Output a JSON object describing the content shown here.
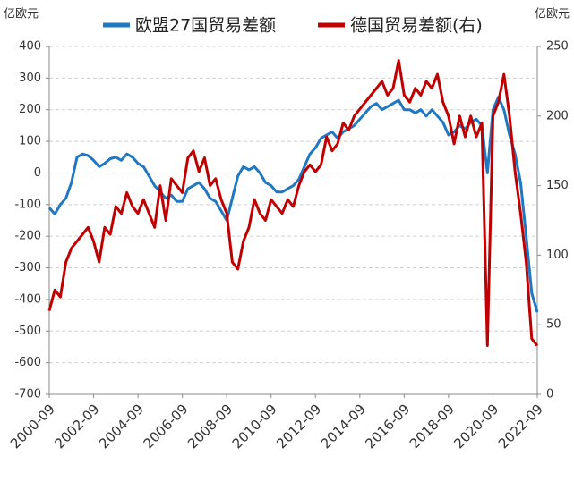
{
  "chart_data": {
    "type": "line",
    "y_unit": "亿欧元",
    "y2_unit": "亿欧元",
    "x": [
      "2000-09",
      "2000-12",
      "2001-03",
      "2001-06",
      "2001-09",
      "2001-12",
      "2002-03",
      "2002-06",
      "2002-09",
      "2002-12",
      "2003-03",
      "2003-06",
      "2003-09",
      "2003-12",
      "2004-03",
      "2004-06",
      "2004-09",
      "2004-12",
      "2005-03",
      "2005-06",
      "2005-09",
      "2005-12",
      "2006-03",
      "2006-06",
      "2006-09",
      "2006-12",
      "2007-03",
      "2007-06",
      "2007-09",
      "2007-12",
      "2008-03",
      "2008-06",
      "2008-09",
      "2008-12",
      "2009-03",
      "2009-06",
      "2009-09",
      "2009-12",
      "2010-03",
      "2010-06",
      "2010-09",
      "2010-12",
      "2011-03",
      "2011-06",
      "2011-09",
      "2011-12",
      "2012-03",
      "2012-06",
      "2012-09",
      "2012-12",
      "2013-03",
      "2013-06",
      "2013-09",
      "2013-12",
      "2014-03",
      "2014-06",
      "2014-09",
      "2014-12",
      "2015-03",
      "2015-06",
      "2015-09",
      "2015-12",
      "2016-03",
      "2016-06",
      "2016-09",
      "2016-12",
      "2017-03",
      "2017-06",
      "2017-09",
      "2017-12",
      "2018-03",
      "2018-06",
      "2018-09",
      "2018-12",
      "2019-03",
      "2019-06",
      "2019-09",
      "2019-12",
      "2020-03",
      "2020-06",
      "2020-09",
      "2020-12",
      "2021-03",
      "2021-06",
      "2021-09",
      "2021-12",
      "2022-03",
      "2022-06",
      "2022-09"
    ],
    "series": [
      {
        "name": "欧盟27国贸易差额",
        "color": "#1f78c1",
        "axis": "y",
        "values": [
          -110,
          -130,
          -100,
          -80,
          -30,
          50,
          60,
          55,
          40,
          20,
          30,
          45,
          50,
          40,
          60,
          50,
          30,
          20,
          -10,
          -40,
          -60,
          -80,
          -70,
          -90,
          -90,
          -50,
          -40,
          -30,
          -50,
          -80,
          -90,
          -120,
          -150,
          -80,
          -10,
          20,
          10,
          20,
          0,
          -30,
          -40,
          -60,
          -60,
          -50,
          -40,
          -20,
          20,
          60,
          80,
          110,
          120,
          130,
          110,
          130,
          140,
          150,
          170,
          190,
          210,
          220,
          200,
          210,
          220,
          230,
          200,
          200,
          190,
          200,
          180,
          200,
          180,
          160,
          120,
          130,
          150,
          140,
          160,
          170,
          150,
          0,
          200,
          240,
          200,
          120,
          60,
          -30,
          -200,
          -380,
          -440
        ]
      },
      {
        "name": "德国贸易差额(右)",
        "color": "#c00000",
        "axis": "y2",
        "values": [
          60,
          75,
          70,
          95,
          105,
          110,
          115,
          120,
          110,
          95,
          120,
          115,
          135,
          130,
          145,
          135,
          130,
          140,
          130,
          120,
          150,
          125,
          155,
          150,
          145,
          170,
          175,
          160,
          170,
          150,
          155,
          140,
          130,
          95,
          90,
          110,
          120,
          140,
          130,
          125,
          140,
          135,
          130,
          140,
          135,
          150,
          160,
          165,
          160,
          165,
          185,
          175,
          180,
          195,
          190,
          200,
          205,
          210,
          215,
          220,
          225,
          215,
          220,
          240,
          215,
          210,
          220,
          215,
          225,
          220,
          230,
          210,
          200,
          180,
          200,
          185,
          200,
          185,
          195,
          35,
          200,
          210,
          230,
          200,
          160,
          130,
          95,
          40,
          35
        ]
      }
    ],
    "xlim": [
      "2000-09",
      "2022-09"
    ],
    "xticks": [
      "2000-09",
      "2002-09",
      "2004-09",
      "2006-09",
      "2008-09",
      "2010-09",
      "2012-09",
      "2014-09",
      "2016-09",
      "2018-09",
      "2020-09",
      "2022-09"
    ],
    "ylim": [
      -700,
      400
    ],
    "yticks": [
      400,
      300,
      200,
      100,
      0,
      -100,
      -200,
      -300,
      -400,
      -500,
      -600,
      -700
    ],
    "y2lim": [
      0,
      250
    ],
    "y2ticks": [
      250,
      200,
      150,
      100,
      50,
      0
    ],
    "grid": true,
    "legend": "top"
  }
}
